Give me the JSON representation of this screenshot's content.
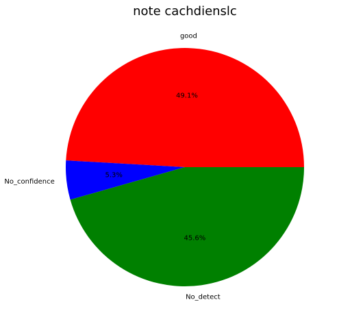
{
  "chart_data": {
    "type": "pie",
    "title": "note cachdienslc",
    "slices": [
      {
        "label": "good",
        "value": 49.1,
        "pct_label": "49.1%",
        "color": "#ff0000"
      },
      {
        "label": "No_confidence",
        "value": 5.3,
        "pct_label": "5.3%",
        "color": "#0000ff"
      },
      {
        "label": "No_detect",
        "value": 45.6,
        "pct_label": "45.6%",
        "color": "#008000"
      }
    ],
    "start_angle_deg": 0,
    "direction": "counterclockwise",
    "legend": "none"
  }
}
